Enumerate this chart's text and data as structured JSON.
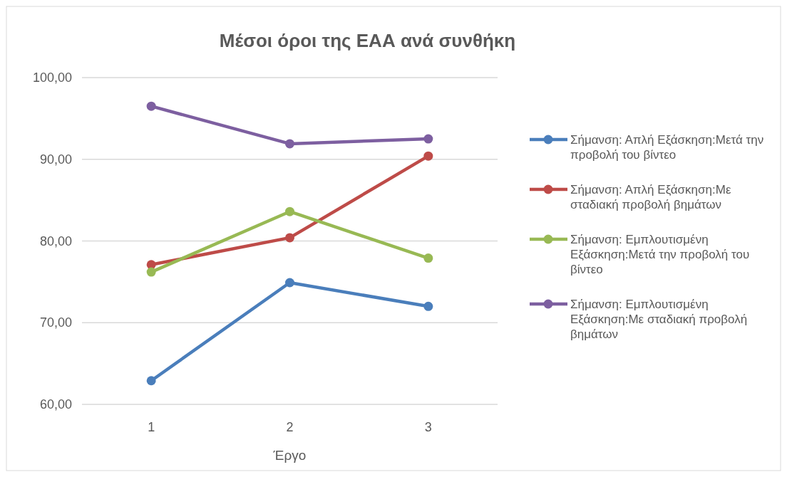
{
  "chart_data": {
    "type": "line",
    "title": "Μέσοι όροι της ΕΑΑ ανά συνθήκη",
    "xlabel": "Έργο",
    "categories": [
      "1",
      "2",
      "3"
    ],
    "series": [
      {
        "name": "Σήμανση: Απλή Εξάσκηση:Μετά την προβολή του βίντεο",
        "color": "#4a7ebb",
        "values": [
          62.9,
          74.9,
          72.0
        ]
      },
      {
        "name": "Σήμανση: Απλή Εξάσκηση:Με σταδιακή προβολή βημάτων",
        "color": "#be4b48",
        "values": [
          77.1,
          80.4,
          90.4
        ]
      },
      {
        "name": "Σήμανση: Εμπλουτισμένη Εξάσκηση:Μετά την προβολή του βίντεο",
        "color": "#98b954",
        "values": [
          76.2,
          83.6,
          77.9
        ]
      },
      {
        "name": "Σήμανση: Εμπλουτισμένη Εξάσκηση:Με σταδιακή προβολή βημάτων",
        "color": "#7d5fa0",
        "values": [
          96.5,
          91.9,
          92.5
        ]
      }
    ],
    "ylim": [
      60,
      100
    ],
    "yticks": [
      {
        "value": 60,
        "label": "60,00"
      },
      {
        "value": 70,
        "label": "70,00"
      },
      {
        "value": 80,
        "label": "80,00"
      },
      {
        "value": 90,
        "label": "90,00"
      },
      {
        "value": 100,
        "label": "100,00"
      }
    ],
    "grid": "y",
    "legend": "right",
    "marker": "circle",
    "line_style": "solid"
  }
}
